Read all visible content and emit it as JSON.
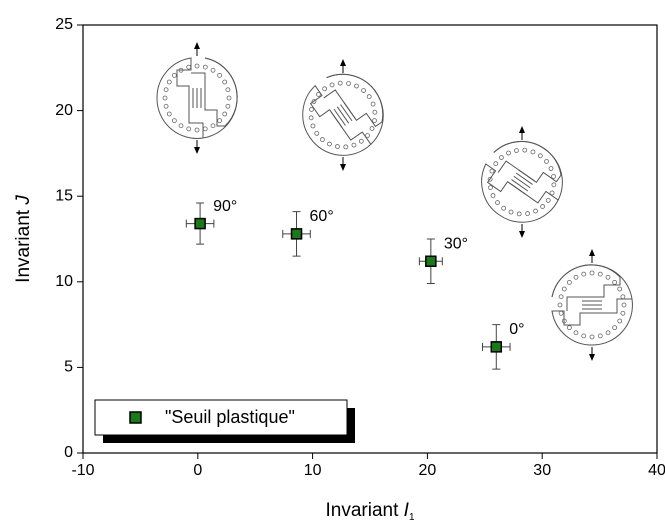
{
  "chart_data": {
    "type": "scatter",
    "x_label": "Invariant",
    "x_label_var": "I",
    "x_label_sub": "1",
    "y_label": "Invariant",
    "y_label_var": "J",
    "xlim": [
      -10,
      40
    ],
    "xticks": [
      -10,
      0,
      10,
      20,
      30,
      40
    ],
    "ylim": [
      0,
      25
    ],
    "yticks": [
      0,
      5,
      10,
      15,
      20,
      25
    ],
    "legend": "bottom-left",
    "series": [
      {
        "name": "\"Seuil plastique\"",
        "color": "#1a7a1a",
        "x": [
          0.2,
          8.6,
          20.3,
          26.0
        ],
        "y": [
          13.4,
          12.8,
          11.2,
          6.2
        ],
        "xerr": [
          1.2,
          1.2,
          1.0,
          1.2
        ],
        "yerr": [
          1.2,
          1.3,
          1.3,
          1.3
        ],
        "point_labels": [
          "90°",
          "60°",
          "30°",
          "0°"
        ]
      }
    ]
  }
}
